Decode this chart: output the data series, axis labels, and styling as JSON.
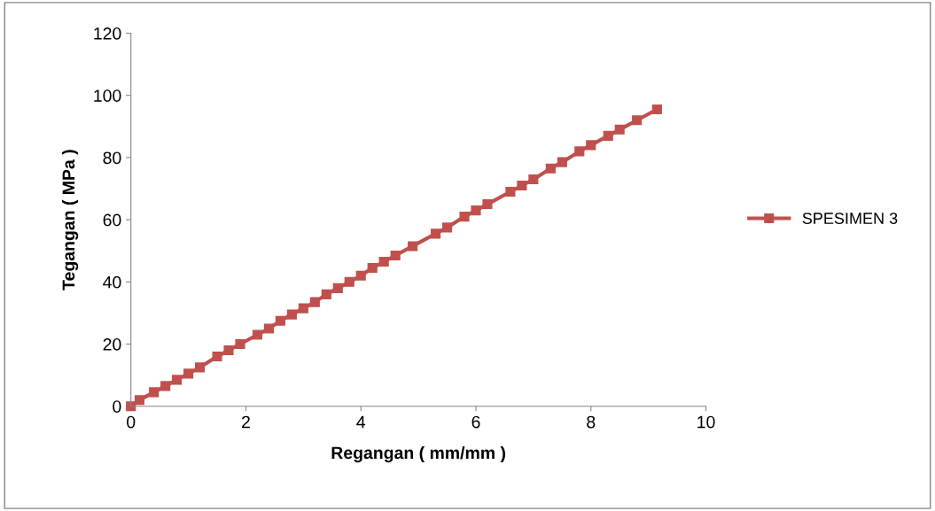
{
  "chart_data": {
    "type": "line",
    "xlabel": "Regangan ( mm/mm )",
    "ylabel": "Tegangan ( MPa )",
    "series": [
      {
        "name": "SPESIMEN 3",
        "color": "#c0504d",
        "x": [
          0,
          0.15,
          0.4,
          0.6,
          0.8,
          1.0,
          1.2,
          1.5,
          1.7,
          1.9,
          2.2,
          2.4,
          2.6,
          2.8,
          3.0,
          3.2,
          3.4,
          3.6,
          3.8,
          4.0,
          4.2,
          4.4,
          4.6,
          4.9,
          5.3,
          5.5,
          5.8,
          6.0,
          6.2,
          6.6,
          6.8,
          7.0,
          7.3,
          7.5,
          7.8,
          8.0,
          8.3,
          8.5,
          8.8,
          9.15
        ],
        "values": [
          0,
          2,
          4.5,
          6.5,
          8.5,
          10.5,
          12.5,
          16,
          18,
          20,
          23,
          25,
          27.5,
          29.5,
          31.5,
          33.5,
          36,
          38,
          40,
          42,
          44.5,
          46.5,
          48.5,
          51.5,
          55.5,
          57.5,
          61,
          63,
          65,
          69,
          71,
          73,
          76.5,
          78.5,
          82,
          84,
          87,
          89,
          92,
          95.5
        ]
      }
    ],
    "xlim": [
      0,
      10
    ],
    "xticks": [
      0,
      2,
      4,
      6,
      8,
      10
    ],
    "ylim": [
      0,
      120
    ],
    "yticks": [
      0,
      20,
      40,
      60,
      80,
      100,
      120
    ],
    "marker": "square",
    "line_style": "solid",
    "grid": false,
    "legend": "right"
  }
}
